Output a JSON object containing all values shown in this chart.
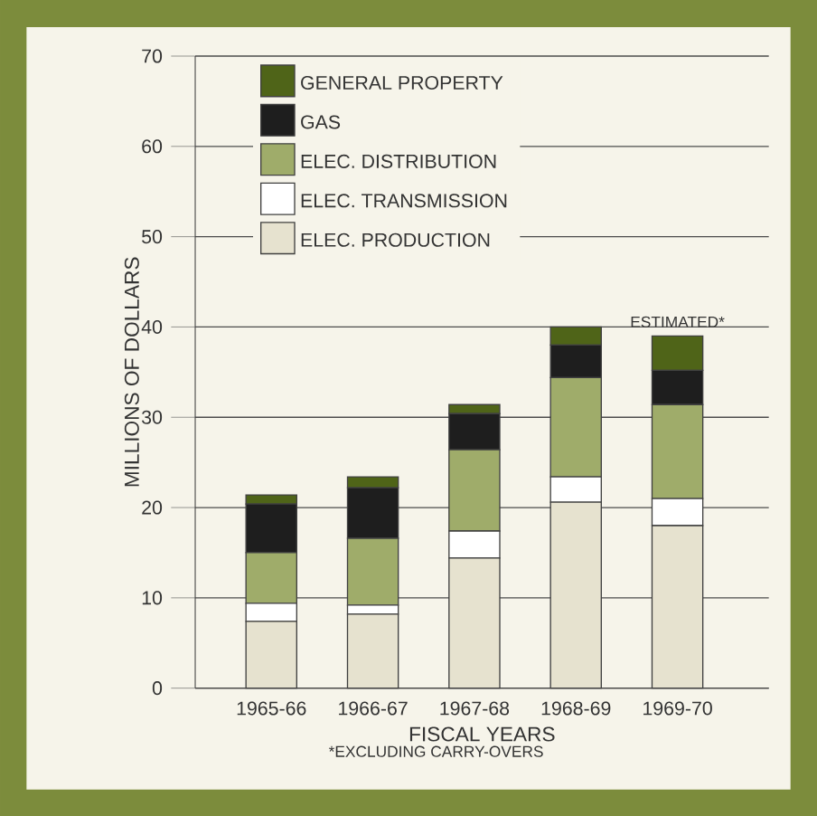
{
  "chart_data": {
    "type": "bar",
    "stacked": true,
    "ylabel": "MILLIONS OF DOLLARS",
    "xlabel": "FISCAL YEARS",
    "categories": [
      "1965-66",
      "1966-67",
      "1967-68",
      "1968-69",
      "1969-70"
    ],
    "series": [
      {
        "name": "ELEC. PRODUCTION",
        "color": "#e6e2cf",
        "values": [
          7.4,
          8.2,
          14.4,
          20.6,
          18.0
        ]
      },
      {
        "name": "ELEC. TRANSMISSION",
        "color": "#ffffff",
        "values": [
          2.0,
          1.0,
          3.0,
          2.8,
          3.0
        ]
      },
      {
        "name": "ELEC. DISTRIBUTION",
        "color": "#9fac6a",
        "values": [
          5.6,
          7.4,
          9.0,
          11.0,
          10.4
        ]
      },
      {
        "name": "GAS",
        "color": "#1e1e1e",
        "values": [
          5.4,
          5.6,
          4.0,
          3.6,
          3.8
        ]
      },
      {
        "name": "GENERAL PROPERTY",
        "color": "#4f6418",
        "values": [
          1.0,
          1.2,
          1.0,
          2.0,
          3.8
        ]
      }
    ],
    "ylim": [
      0,
      70
    ],
    "yticks": [
      0,
      10,
      20,
      30,
      40,
      50,
      60,
      70
    ],
    "grid": "y",
    "legend": "top left",
    "annotations": [
      {
        "text": "ESTIMATED*",
        "x": "1969-70",
        "y": 39
      },
      "*EXCLUDING CARRY-OVERS"
    ]
  }
}
